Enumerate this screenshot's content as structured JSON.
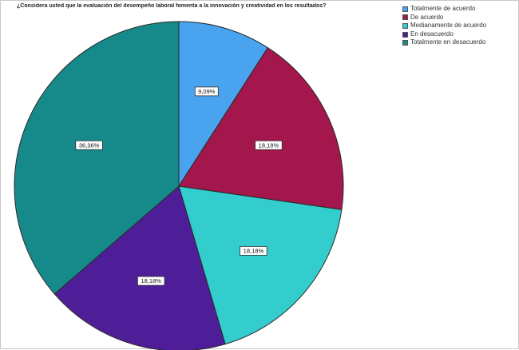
{
  "chart_data": {
    "type": "pie",
    "title": "¿Considera usted que la evaluación del desempeño laboral fomenta a la innovación y creatividad en los resultados?",
    "slices": [
      {
        "name": "Totalmente de acuerdo",
        "value": 9.09,
        "label": "9,09%",
        "color": "#4aa3ee"
      },
      {
        "name": "De acuerdo",
        "value": 18.18,
        "label": "18,18%",
        "color": "#a3174d"
      },
      {
        "name": "Medianamente de acuerdo",
        "value": 18.18,
        "label": "18,18%",
        "color": "#33cdcd"
      },
      {
        "name": "En desacuerdo",
        "value": 18.18,
        "label": "18,18%",
        "color": "#4d1e97"
      },
      {
        "name": "Totalmente en desacuerdo",
        "value": 36.36,
        "label": "36,36%",
        "color": "#16898a"
      }
    ],
    "legend_position": "top-right"
  }
}
